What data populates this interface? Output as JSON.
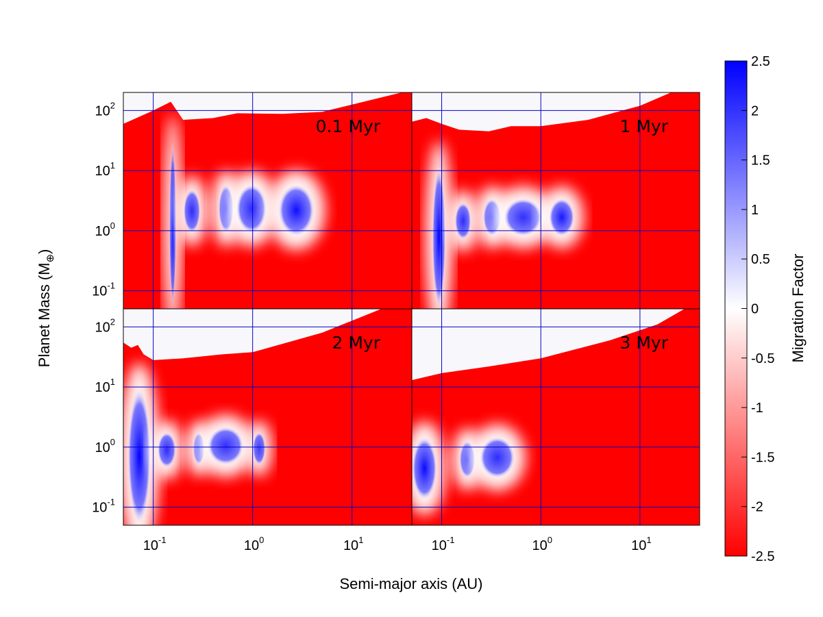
{
  "chart_data": {
    "type": "heatmap",
    "xlabel": "Semi-major axis (AU)",
    "ylabel": "Planet Mass (M⊕)",
    "x_scale": "log",
    "y_scale": "log",
    "xlim": [
      0.05,
      40
    ],
    "ylim": [
      0.05,
      200
    ],
    "x_ticks": [
      {
        "value": 0.1,
        "base": "10",
        "exp": "-1"
      },
      {
        "value": 1,
        "base": "10",
        "exp": "0"
      },
      {
        "value": 10,
        "base": "10",
        "exp": "1"
      }
    ],
    "y_ticks": [
      {
        "value": 0.1,
        "base": "10",
        "exp": "-1"
      },
      {
        "value": 1,
        "base": "10",
        "exp": "0"
      },
      {
        "value": 10,
        "base": "10",
        "exp": "1"
      },
      {
        "value": 100,
        "base": "10",
        "exp": "2"
      }
    ],
    "grid": true,
    "grid_color": "#0000c8",
    "colorbar": {
      "label": "Migration Factor",
      "range": [
        -2.5,
        2.5
      ],
      "ticks": [
        "2.5",
        "2",
        "1.5",
        "1",
        "0.5",
        "0",
        "-0.5",
        "-1",
        "-1.5",
        "-2",
        "-2.5"
      ],
      "colors": [
        "#ff0000",
        "#ffffff",
        "#0000ff"
      ]
    },
    "panels": [
      {
        "time": "0.1 Myr",
        "saturation_boundary": [
          [
            0.05,
            60
          ],
          [
            0.1,
            100
          ],
          [
            0.15,
            140
          ],
          [
            0.2,
            70
          ],
          [
            0.4,
            75
          ],
          [
            0.7,
            90
          ],
          [
            2,
            88
          ],
          [
            5,
            95
          ],
          [
            40,
            220
          ]
        ],
        "outward_zones": [
          {
            "a_min": 0.145,
            "a_max": 0.17,
            "m_min": 0.05,
            "m_max": 30,
            "peak": 2.5
          },
          {
            "a_min": 0.2,
            "a_max": 0.3,
            "m_min": 0.9,
            "m_max": 5,
            "peak": 1.5
          },
          {
            "a_min": 0.45,
            "a_max": 0.65,
            "m_min": 0.9,
            "m_max": 6,
            "peak": 1.5
          },
          {
            "a_min": 0.68,
            "a_max": 1.4,
            "m_min": 0.9,
            "m_max": 6,
            "peak": 1.5
          },
          {
            "a_min": 1.8,
            "a_max": 4.2,
            "m_min": 0.8,
            "m_max": 6,
            "peak": 2.2
          }
        ]
      },
      {
        "time": "1 Myr",
        "saturation_boundary": [
          [
            0.05,
            65
          ],
          [
            0.07,
            75
          ],
          [
            0.1,
            60
          ],
          [
            0.15,
            48
          ],
          [
            0.3,
            45
          ],
          [
            0.5,
            55
          ],
          [
            1,
            55
          ],
          [
            3,
            70
          ],
          [
            10,
            120
          ],
          [
            40,
            320
          ]
        ],
        "outward_zones": [
          {
            "a_min": 0.08,
            "a_max": 0.11,
            "m_min": 0.05,
            "m_max": 12,
            "peak": 2.5
          },
          {
            "a_min": 0.135,
            "a_max": 0.2,
            "m_min": 0.7,
            "m_max": 3,
            "peak": 1.5
          },
          {
            "a_min": 0.26,
            "a_max": 0.4,
            "m_min": 0.8,
            "m_max": 3.5,
            "peak": 1.4
          },
          {
            "a_min": 0.42,
            "a_max": 1.05,
            "m_min": 0.8,
            "m_max": 3.5,
            "peak": 1.4
          },
          {
            "a_min": 1.2,
            "a_max": 2.2,
            "m_min": 0.8,
            "m_max": 3.5,
            "peak": 2.0
          }
        ]
      },
      {
        "time": "2 Myr",
        "saturation_boundary": [
          [
            0.05,
            55
          ],
          [
            0.06,
            45
          ],
          [
            0.07,
            50
          ],
          [
            0.08,
            35
          ],
          [
            0.1,
            28
          ],
          [
            0.2,
            30
          ],
          [
            0.5,
            35
          ],
          [
            1,
            38
          ],
          [
            5,
            80
          ],
          [
            40,
            320
          ]
        ],
        "outward_zones": [
          {
            "a_min": 0.055,
            "a_max": 0.095,
            "m_min": 0.05,
            "m_max": 10,
            "peak": 2.5
          },
          {
            "a_min": 0.11,
            "a_max": 0.17,
            "m_min": 0.45,
            "m_max": 1.8,
            "peak": 1.5
          },
          {
            "a_min": 0.25,
            "a_max": 0.33,
            "m_min": 0.5,
            "m_max": 1.8,
            "peak": 1.4
          },
          {
            "a_min": 0.35,
            "a_max": 0.82,
            "m_min": 0.5,
            "m_max": 2.2,
            "peak": 1.4
          },
          {
            "a_min": 1.0,
            "a_max": 1.35,
            "m_min": 0.5,
            "m_max": 1.8,
            "peak": 1.0
          }
        ]
      },
      {
        "time": "3 Myr",
        "saturation_boundary": [
          [
            0.05,
            13
          ],
          [
            0.1,
            17
          ],
          [
            0.3,
            22
          ],
          [
            1,
            30
          ],
          [
            5,
            60
          ],
          [
            15,
            110
          ],
          [
            40,
            280
          ]
        ],
        "outward_zones": [
          {
            "a_min": 0.05,
            "a_max": 0.09,
            "m_min": 0.13,
            "m_max": 1.5,
            "peak": 2.3
          },
          {
            "a_min": 0.15,
            "a_max": 0.22,
            "m_min": 0.3,
            "m_max": 1.3,
            "peak": 1.4
          },
          {
            "a_min": 0.24,
            "a_max": 0.55,
            "m_min": 0.3,
            "m_max": 1.5,
            "peak": 1.5
          }
        ]
      }
    ]
  }
}
